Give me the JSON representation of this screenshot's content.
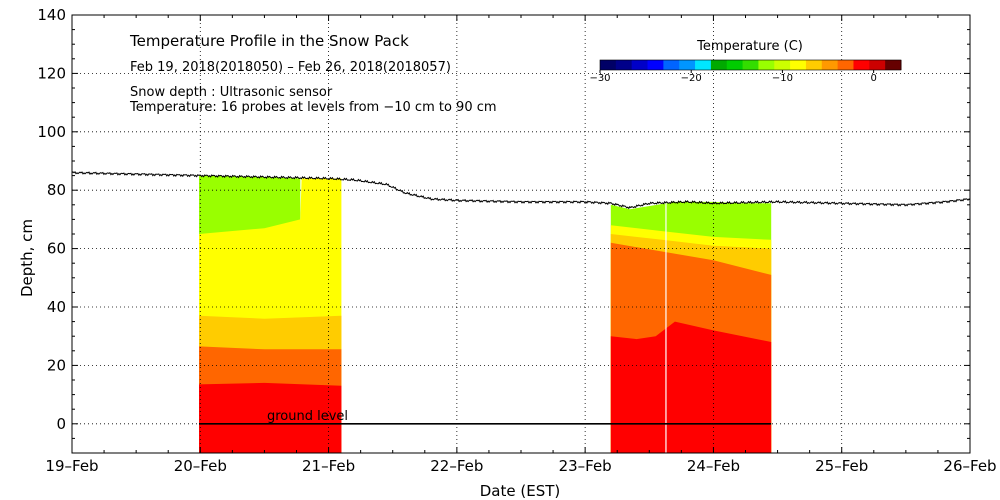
{
  "chart_data": {
    "type": "area",
    "title": "Temperature Profile in the Snow Pack",
    "subtitle": "Feb 19, 2018(2018050) – Feb 26, 2018(2018057)",
    "notes": [
      "Snow depth : Ultrasonic sensor",
      "Temperature: 16 probes at levels from −10 cm to 90 cm"
    ],
    "xlabel": "Date (EST)",
    "ylabel": "Depth, cm",
    "x_ticks": [
      "19–Feb",
      "20–Feb",
      "21–Feb",
      "22–Feb",
      "23–Feb",
      "24–Feb",
      "25–Feb",
      "26–Feb"
    ],
    "xlim": [
      0,
      7
    ],
    "ylim": [
      -10,
      140
    ],
    "y_ticks": [
      0,
      20,
      40,
      60,
      80,
      100,
      120,
      140
    ],
    "grid": true,
    "ground_level_label": "ground level",
    "colorbar": {
      "title": "Temperature (C)",
      "range": [
        -30,
        3
      ],
      "ticks": [
        -30,
        -20,
        -10,
        0
      ],
      "colors": [
        "#000066",
        "#00008a",
        "#0000c8",
        "#0000ff",
        "#0064ff",
        "#0096ff",
        "#00e6ff",
        "#00aa00",
        "#00cc00",
        "#33dd00",
        "#99ff00",
        "#ccff00",
        "#ffff00",
        "#ffcc00",
        "#ff9900",
        "#ff6600",
        "#ff0000",
        "#cc0000",
        "#660000"
      ]
    },
    "snow_depth": {
      "x": [
        0,
        0.5,
        1.0,
        1.5,
        2.0,
        2.2,
        2.45,
        2.6,
        2.8,
        3.0,
        3.5,
        4.0,
        4.2,
        4.35,
        4.5,
        4.8,
        5.0,
        5.5,
        6.0,
        6.5,
        6.8,
        7.0
      ],
      "y": [
        86,
        85.5,
        85,
        84.5,
        84,
        83.5,
        82,
        79,
        77,
        76.5,
        76,
        76,
        75.5,
        74,
        75.5,
        76,
        75.5,
        76,
        75.5,
        75,
        76,
        77
      ]
    },
    "temperature_blocks": [
      {
        "x_start": 0.99,
        "x_end": 2.1,
        "layers": [
          {
            "color": "#ff0000",
            "x": [
              0.99,
              1.5,
              2.1
            ],
            "top": [
              13.5,
              14,
              13
            ]
          },
          {
            "color": "#ff6600",
            "x": [
              0.99,
              1.5,
              2.1
            ],
            "top": [
              26.5,
              25.5,
              25.5
            ]
          },
          {
            "color": "#ffcc00",
            "x": [
              0.99,
              1.5,
              2.1
            ],
            "top": [
              37,
              36,
              37
            ]
          },
          {
            "color": "#ffff00",
            "x": [
              0.99,
              1.5,
              1.78,
              1.79,
              2.1
            ],
            "top": [
              65,
              67,
              70,
              84,
              84
            ]
          },
          {
            "color": "#99ff00",
            "x": [
              0.99,
              1.5,
              1.78
            ],
            "top": [
              85,
              84.5,
              84
            ]
          }
        ]
      },
      {
        "x_start": 4.2,
        "x_end": 5.45,
        "layers": [
          {
            "color": "#ff0000",
            "x": [
              4.2,
              4.4,
              4.55,
              4.7,
              5.0,
              5.45
            ],
            "top": [
              30,
              29,
              30,
              35,
              32,
              28
            ]
          },
          {
            "color": "#ff6600",
            "x": [
              4.2,
              4.6,
              5.0,
              5.45
            ],
            "top": [
              62,
              59,
              56,
              51
            ]
          },
          {
            "color": "#ffcc00",
            "x": [
              4.2,
              4.6,
              5.0,
              5.45
            ],
            "top": [
              65,
              63,
              61,
              60
            ]
          },
          {
            "color": "#ffff00",
            "x": [
              4.2,
              4.6,
              5.0,
              5.45
            ],
            "top": [
              68,
              66,
              64,
              63
            ]
          },
          {
            "color": "#99ff00",
            "x": [
              4.2,
              4.35,
              4.7,
              5.0,
              5.2,
              5.45
            ],
            "top": [
              75,
              73.5,
              76,
              76,
              75.5,
              75.5
            ]
          }
        ]
      }
    ],
    "data_gap_line_x": 4.63
  }
}
